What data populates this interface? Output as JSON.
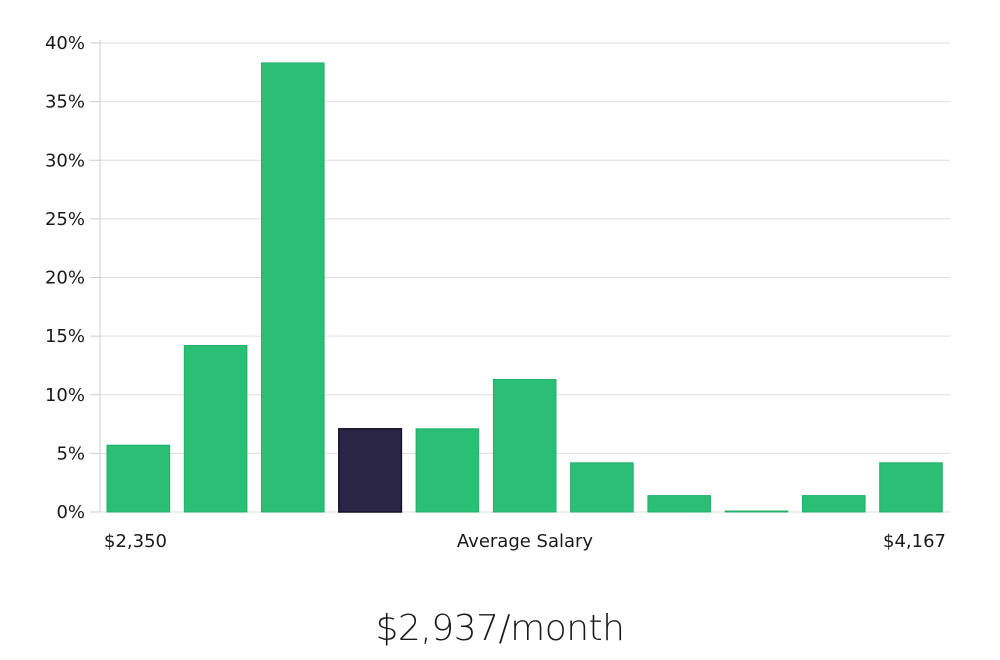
{
  "chart_data": {
    "type": "bar",
    "values": [
      5.7,
      14.2,
      38.3,
      7.1,
      7.1,
      11.3,
      4.2,
      1.4,
      0.05,
      1.4,
      4.2
    ],
    "highlight_index": 3,
    "ylim": [
      0,
      40
    ],
    "y_ticks": [
      0,
      5,
      10,
      15,
      20,
      25,
      30,
      35,
      40
    ],
    "y_tick_suffix": "%",
    "xlabel": "Average Salary",
    "x_min_label": "$2,350",
    "x_max_label": "$4,167",
    "grid": true,
    "colors": {
      "bar": "#2bbf76",
      "bar_stroke": "#22b06a",
      "highlight": "#2a2545",
      "highlight_stroke": "#15122a"
    }
  },
  "summary": {
    "value": "$2,937/month"
  }
}
